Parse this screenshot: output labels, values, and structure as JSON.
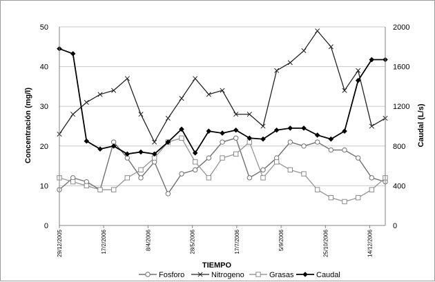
{
  "chart_data": {
    "type": "line",
    "xlabel": "TIEMPO",
    "ylabel_left": "Concentración (mg/l)",
    "ylabel_right": "Caudal (L/s)",
    "ylim_left": [
      0,
      50
    ],
    "ylim_right": [
      0,
      2000
    ],
    "yticks_left": [
      "0",
      "10",
      "20",
      "30",
      "40",
      "50"
    ],
    "yticks_right": [
      "0",
      "400",
      "800",
      "1200",
      "1600",
      "2000"
    ],
    "xticks": [
      "29/12/2005",
      "17/2/2006",
      "8/4/2006",
      "28/5/2006",
      "17/7/2006",
      "5/9/2006",
      "25/10/2006",
      "14/12/2006"
    ],
    "grid": "horizontal",
    "legend_position": "bottom",
    "series": [
      {
        "name": "Fosforo",
        "axis": "left",
        "marker": "circle",
        "values": [
          9,
          12,
          11,
          9,
          21,
          17,
          12,
          16,
          8,
          13,
          14,
          17,
          21,
          22,
          12,
          14,
          17,
          21,
          20,
          21,
          19,
          19,
          17,
          12,
          11
        ]
      },
      {
        "name": "Nitrogeno",
        "axis": "left",
        "marker": "x",
        "values": [
          23,
          28,
          31,
          33,
          34,
          37,
          28,
          21,
          27,
          32,
          37,
          33,
          34,
          28,
          28,
          25,
          39,
          41,
          44,
          49,
          45,
          34,
          39,
          25,
          27
        ]
      },
      {
        "name": "Grasas",
        "axis": "left",
        "marker": "square",
        "values": [
          12,
          11,
          10,
          9,
          9,
          12,
          14,
          17,
          21,
          22,
          16,
          12,
          17,
          18,
          21,
          12,
          16,
          14,
          13,
          9,
          7,
          6,
          7,
          9,
          12
        ]
      },
      {
        "name": "Caudal",
        "axis": "right",
        "marker": "diamond",
        "values": [
          1780,
          1730,
          850,
          770,
          800,
          720,
          740,
          720,
          840,
          970,
          730,
          950,
          930,
          960,
          880,
          870,
          960,
          980,
          980,
          910,
          870,
          950,
          1460,
          1670,
          1670
        ]
      }
    ]
  }
}
